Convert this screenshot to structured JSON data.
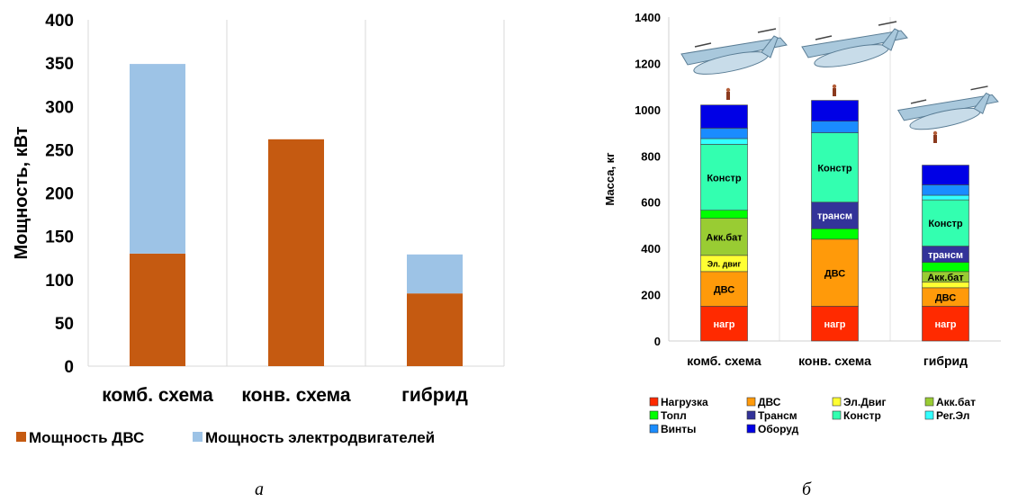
{
  "chart_data": [
    {
      "type": "bar",
      "stacked": true,
      "categories": [
        "комб. схема",
        "конв. схема",
        "гибрид"
      ],
      "series": [
        {
          "name": "Мощность ДВС",
          "values": [
            130,
            262,
            84
          ],
          "color": "#c55a11"
        },
        {
          "name": "Мощность электродвигателей",
          "values": [
            219,
            0,
            45
          ],
          "color": "#9dc3e6"
        }
      ],
      "ylabel": "Мощность, кВт",
      "ylim": [
        0,
        400
      ],
      "yticks": [
        0,
        50,
        100,
        150,
        200,
        250,
        300,
        350,
        400
      ],
      "grid": "vertical category separators",
      "legend_position": "bottom",
      "caption": "а"
    },
    {
      "type": "bar",
      "stacked": true,
      "categories": [
        "комб. схема",
        "конв. схема",
        "гибрид"
      ],
      "ylabel": "Масса, кг",
      "ylim": [
        0,
        1400
      ],
      "yticks": [
        0,
        200,
        400,
        600,
        800,
        1000,
        1200,
        1400
      ],
      "series": [
        {
          "name": "Нагрузка",
          "color": "#ff2a00",
          "values": [
            150,
            150,
            150
          ],
          "labels": [
            "нагр",
            "нагр",
            "нагр"
          ]
        },
        {
          "name": "ДВС",
          "color": "#ff9a0a",
          "values": [
            150,
            290,
            80
          ],
          "labels": [
            "ДВС",
            "ДВС",
            "ДВС"
          ]
        },
        {
          "name": "Эл.Двиг",
          "color": "#ffff33",
          "values": [
            70,
            0,
            25
          ],
          "labels": [
            "Эл. двиг",
            "",
            ""
          ]
        },
        {
          "name": "Акк.бат",
          "color": "#99cc33",
          "values": [
            160,
            0,
            45
          ],
          "labels": [
            "Акк.бат",
            "",
            "Акк.бат"
          ]
        },
        {
          "name": "Топл",
          "color": "#00ff00",
          "values": [
            35,
            45,
            40
          ],
          "labels": [
            "",
            "",
            ""
          ]
        },
        {
          "name": "Трансм",
          "color": "#333399",
          "values": [
            0,
            115,
            70
          ],
          "labels": [
            "",
            "трансм",
            "трансм"
          ]
        },
        {
          "name": "Констр",
          "color": "#33ffb0",
          "values": [
            285,
            300,
            200
          ],
          "labels": [
            "Констр",
            "Констр",
            "Констр"
          ]
        },
        {
          "name": "Рег.Эл",
          "color": "#33ffff",
          "values": [
            25,
            0,
            20
          ],
          "labels": [
            "",
            "",
            ""
          ]
        },
        {
          "name": "Винты",
          "color": "#1a8cff",
          "values": [
            45,
            50,
            45
          ],
          "labels": [
            "",
            "",
            ""
          ]
        },
        {
          "name": "Оборуд",
          "color": "#0000e6",
          "values": [
            100,
            90,
            85
          ],
          "labels": [
            "",
            "",
            ""
          ]
        }
      ],
      "legend_position": "bottom",
      "caption": "б"
    }
  ]
}
